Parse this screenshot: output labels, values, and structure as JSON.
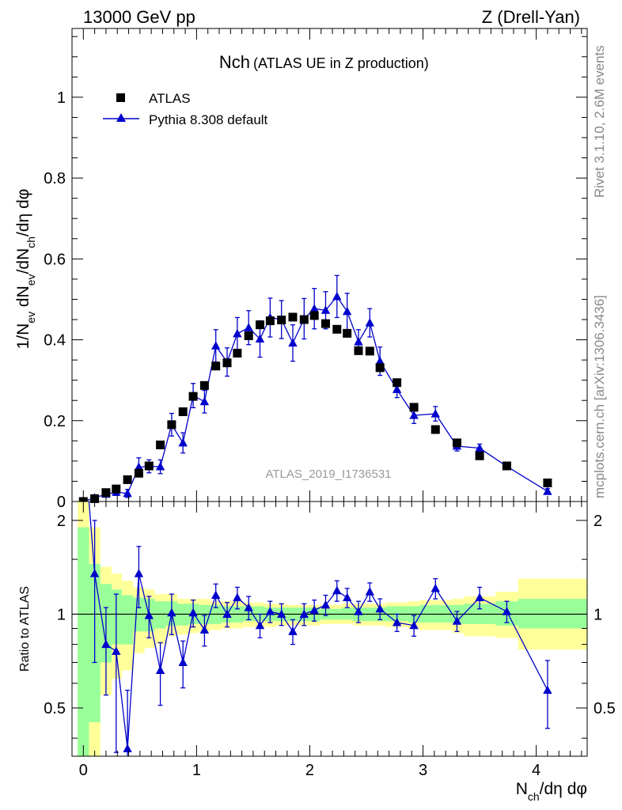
{
  "header": {
    "left": "13000 GeV pp",
    "right": "Z (Drell-Yan)",
    "side_right_top": "Rivet 3.1.10,  2.6M events",
    "side_right_bottom": "mcplots.cern.ch [arXiv:1306.3436]",
    "analysis_id": "ATLAS_2019_I1736531"
  },
  "colors": {
    "data": "#000000",
    "mc": "#0000cc",
    "band_inner": "#99ff99",
    "band_outer": "#ffff99",
    "ref_line": "#000000"
  },
  "chart_data": [
    {
      "type": "scatter",
      "title": "Nch",
      "subtitle": "(ATLAS UE in Z production)",
      "ylabel": "1/N_ev dN_ev/dN_ch/dη dφ",
      "xlim": [
        -0.1,
        4.45
      ],
      "ylim": [
        0,
        1.17
      ],
      "yticks": [
        0,
        0.2,
        0.4,
        0.6,
        0.8,
        1
      ],
      "ytick_labels": [
        "0",
        "0.2",
        "0.4",
        "0.6",
        "0.8",
        "1"
      ],
      "legend": {
        "placement": "top-left",
        "entries": [
          "ATLAS",
          "Pythia 8.308 default"
        ]
      },
      "series": [
        {
          "name": "ATLAS",
          "marker": "square",
          "x": [
            0.0,
            0.1,
            0.2,
            0.29,
            0.39,
            0.49,
            0.58,
            0.68,
            0.78,
            0.88,
            0.97,
            1.07,
            1.17,
            1.27,
            1.36,
            1.46,
            1.56,
            1.65,
            1.75,
            1.85,
            1.95,
            2.04,
            2.14,
            2.24,
            2.33,
            2.43,
            2.53,
            2.62,
            2.77,
            2.92,
            3.11,
            3.3,
            3.5,
            3.74,
            4.1
          ],
          "y": [
            0.0,
            0.007,
            0.022,
            0.031,
            0.054,
            0.07,
            0.088,
            0.14,
            0.19,
            0.222,
            0.26,
            0.287,
            0.335,
            0.343,
            0.367,
            0.41,
            0.437,
            0.447,
            0.449,
            0.456,
            0.45,
            0.46,
            0.44,
            0.426,
            0.416,
            0.373,
            0.372,
            0.331,
            0.294,
            0.233,
            0.178,
            0.145,
            0.113,
            0.088,
            0.046
          ]
        },
        {
          "name": "Pythia 8.308 default",
          "marker": "triangle",
          "x": [
            0.0,
            0.1,
            0.2,
            0.29,
            0.39,
            0.49,
            0.58,
            0.68,
            0.78,
            0.88,
            0.97,
            1.07,
            1.17,
            1.27,
            1.36,
            1.46,
            1.56,
            1.65,
            1.75,
            1.85,
            1.95,
            2.04,
            2.14,
            2.24,
            2.33,
            2.43,
            2.53,
            2.62,
            2.77,
            2.92,
            3.11,
            3.3,
            3.5,
            3.74,
            4.1
          ],
          "y": [
            0.0,
            0.009,
            0.018,
            0.023,
            0.02,
            0.085,
            0.087,
            0.086,
            0.19,
            0.145,
            0.262,
            0.247,
            0.385,
            0.345,
            0.415,
            0.43,
            0.402,
            0.455,
            0.45,
            0.392,
            0.452,
            0.477,
            0.473,
            0.507,
            0.47,
            0.395,
            0.442,
            0.347,
            0.277,
            0.213,
            0.217,
            0.137,
            0.132,
            0.087,
            0.025
          ],
          "yerr": [
            0.003,
            0.004,
            0.006,
            0.008,
            0.01,
            0.023,
            0.016,
            0.017,
            0.028,
            0.025,
            0.03,
            0.028,
            0.04,
            0.035,
            0.04,
            0.042,
            0.045,
            0.048,
            0.047,
            0.045,
            0.05,
            0.05,
            0.046,
            0.052,
            0.045,
            0.03,
            0.035,
            0.035,
            0.02,
            0.02,
            0.018,
            0.012,
            0.01,
            0.008,
            0.007
          ]
        }
      ]
    },
    {
      "type": "scatter",
      "title": "",
      "ylabel": "Ratio to ATLAS",
      "xlabel": "N_ch/dη dφ",
      "xlim": [
        -0.1,
        4.45
      ],
      "ylim": [
        0.35,
        2.3
      ],
      "yscale": "log",
      "xticks": [
        0,
        1,
        2,
        3,
        4
      ],
      "xtick_labels": [
        "0",
        "1",
        "2",
        "3",
        "4"
      ],
      "yticks": [
        0.5,
        1,
        2
      ],
      "ytick_labels": [
        "0.5",
        "1",
        "2"
      ],
      "reference_line": 1,
      "bands": {
        "bin_edges": [
          -0.05,
          0.05,
          0.15,
          0.25,
          0.34,
          0.44,
          0.54,
          0.63,
          0.73,
          0.83,
          0.93,
          1.02,
          1.12,
          1.22,
          1.31,
          1.41,
          1.51,
          1.6,
          1.7,
          1.8,
          1.9,
          1.99,
          2.09,
          2.19,
          2.28,
          2.38,
          2.48,
          2.58,
          2.67,
          2.87,
          2.97,
          3.26,
          3.36,
          3.64,
          3.84,
          4.45
        ],
        "inner_lo": [
          0.3,
          0.45,
          0.7,
          0.8,
          0.8,
          0.88,
          0.88,
          0.9,
          0.92,
          0.92,
          0.93,
          0.93,
          0.93,
          0.94,
          0.94,
          0.95,
          0.95,
          0.95,
          0.95,
          0.95,
          0.95,
          0.95,
          0.96,
          0.96,
          0.96,
          0.95,
          0.95,
          0.95,
          0.95,
          0.94,
          0.94,
          0.93,
          0.93,
          0.92,
          0.9
        ],
        "inner_hi": [
          1.9,
          1.45,
          1.25,
          1.2,
          1.15,
          1.13,
          1.12,
          1.1,
          1.1,
          1.08,
          1.08,
          1.07,
          1.07,
          1.06,
          1.06,
          1.06,
          1.06,
          1.05,
          1.05,
          1.05,
          1.05,
          1.05,
          1.04,
          1.04,
          1.05,
          1.05,
          1.05,
          1.05,
          1.06,
          1.06,
          1.07,
          1.07,
          1.08,
          1.1,
          1.12
        ],
        "outer_lo": [
          0.2,
          0.3,
          0.55,
          0.62,
          0.66,
          0.75,
          0.78,
          0.8,
          0.85,
          0.86,
          0.87,
          0.88,
          0.89,
          0.9,
          0.9,
          0.91,
          0.91,
          0.91,
          0.92,
          0.92,
          0.92,
          0.92,
          0.93,
          0.93,
          0.93,
          0.92,
          0.92,
          0.92,
          0.91,
          0.9,
          0.89,
          0.87,
          0.85,
          0.84,
          0.77
        ],
        "outer_hi": [
          2.3,
          1.9,
          1.42,
          1.35,
          1.28,
          1.22,
          1.2,
          1.16,
          1.16,
          1.12,
          1.12,
          1.12,
          1.1,
          1.1,
          1.1,
          1.09,
          1.09,
          1.08,
          1.08,
          1.07,
          1.07,
          1.07,
          1.07,
          1.07,
          1.08,
          1.08,
          1.08,
          1.08,
          1.09,
          1.1,
          1.11,
          1.12,
          1.14,
          1.18,
          1.3
        ]
      },
      "series": [
        {
          "name": "Pythia 8.308 default",
          "marker": "triangle",
          "x": [
            0.1,
            0.2,
            0.29,
            0.39,
            0.49,
            0.58,
            0.68,
            0.78,
            0.88,
            0.97,
            1.07,
            1.17,
            1.27,
            1.36,
            1.46,
            1.56,
            1.65,
            1.75,
            1.85,
            1.95,
            2.04,
            2.14,
            2.24,
            2.33,
            2.43,
            2.53,
            2.62,
            2.77,
            2.92,
            3.11,
            3.3,
            3.5,
            3.74,
            4.1
          ],
          "y": [
            1.35,
            0.8,
            0.76,
            0.37,
            1.35,
            0.99,
            0.66,
            1.01,
            0.7,
            1.01,
            0.89,
            1.15,
            1.0,
            1.13,
            1.05,
            0.92,
            1.02,
            1.0,
            0.88,
            1.0,
            1.03,
            1.07,
            1.19,
            1.13,
            1.02,
            1.18,
            1.04,
            0.94,
            0.92,
            1.21,
            0.95,
            1.13,
            1.02,
            0.57
          ],
          "yerr": [
            0.65,
            0.25,
            0.4,
            0.2,
            0.3,
            0.15,
            0.15,
            0.15,
            0.12,
            0.1,
            0.1,
            0.1,
            0.09,
            0.09,
            0.09,
            0.08,
            0.08,
            0.08,
            0.08,
            0.08,
            0.08,
            0.08,
            0.09,
            0.08,
            0.08,
            0.08,
            0.08,
            0.06,
            0.07,
            0.09,
            0.07,
            0.09,
            0.08,
            0.14
          ]
        }
      ]
    }
  ]
}
